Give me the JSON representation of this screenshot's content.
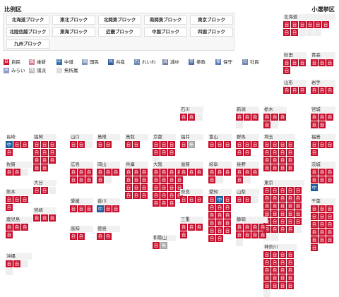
{
  "header": {
    "left": "比例区",
    "right": "小選挙区"
  },
  "blocks": [
    "北海道ブロック",
    "東北ブロック",
    "北関東ブロック",
    "南関東ブロック",
    "東京ブロック",
    "北陸信越ブロック",
    "東海ブロック",
    "近畿ブロック",
    "中国ブロック",
    "四国ブロック",
    "九州ブロック"
  ],
  "legend": [
    {
      "glyph": "自",
      "label": "自民",
      "color": "#c8102e"
    },
    {
      "glyph": "維",
      "label": "維新",
      "color": "#d97b8b"
    },
    {
      "glyph": "中",
      "label": "中道",
      "color": "#2e6aa8"
    },
    {
      "glyph": "国",
      "label": "国民",
      "color": "#7d95bb"
    },
    {
      "glyph": "共",
      "label": "共産",
      "color": "#2f5aa0"
    },
    {
      "glyph": "れ",
      "label": "れいわ",
      "color": "#6c86b2"
    },
    {
      "glyph": "減",
      "label": "減ゆ",
      "color": "#6f82a6"
    },
    {
      "glyph": "参",
      "label": "参政",
      "color": "#4f6da0"
    },
    {
      "glyph": "保",
      "label": "保守",
      "color": "#5b7db5"
    },
    {
      "glyph": "社",
      "label": "社民",
      "color": "#6f85ab"
    },
    {
      "glyph": "み",
      "label": "みらい",
      "color": "#8e97c6"
    },
    {
      "glyph": "諸",
      "label": "諸派",
      "color": "#bbbbbb"
    },
    {
      "glyph": "",
      "label": "無所属",
      "color": "#dddddd"
    }
  ],
  "prefectures": [
    {
      "name": "北海道",
      "seats": "jjjjjjjjeee"
    },
    {
      "name": "秋田",
      "seats": "jjjj"
    },
    {
      "name": "青森",
      "seats": "jjj"
    },
    {
      "name": "山形",
      "seats": "jjj"
    },
    {
      "name": "岩手",
      "seats": "jjj"
    },
    {
      "name": "宮城",
      "seats": "jjjjj"
    },
    {
      "name": "石川",
      "seats": "jje"
    },
    {
      "name": "新潟",
      "seats": "jjje"
    },
    {
      "name": "栃木",
      "seats": "jjjje"
    },
    {
      "name": "福島",
      "seats": "jjjj"
    },
    {
      "name": "長崎",
      "seats": "kjjj"
    },
    {
      "name": "福岡",
      "seats": "jjjjjjjjjjj"
    },
    {
      "name": "山口",
      "seats": "jje"
    },
    {
      "name": "島根",
      "seats": "jj"
    },
    {
      "name": "鳥取",
      "seats": "jj"
    },
    {
      "name": "京都",
      "seats": "jjjjjje"
    },
    {
      "name": "福井",
      "seats": "js"
    },
    {
      "name": "富山",
      "seats": "jjj"
    },
    {
      "name": "群馬",
      "seats": "jjjjj"
    },
    {
      "name": "埼玉",
      "seats": "jjjjjjjjjjjjjjjj"
    },
    {
      "name": "佐賀",
      "seats": "jje"
    },
    {
      "name": "広島",
      "seats": "jjjjjj"
    },
    {
      "name": "岡山",
      "seats": "jjjje"
    },
    {
      "name": "兵庫",
      "seats": "jjjjjjjjjjjj"
    },
    {
      "name": "大阪",
      "seats": "jjjjjjjjjjjjjjjjjjj"
    },
    {
      "name": "滋賀",
      "seats": "jjj"
    },
    {
      "name": "岐阜",
      "seats": "jjjje"
    },
    {
      "name": "長野",
      "seats": "jjjje"
    },
    {
      "name": "茨城",
      "seats": "jjjjjjk"
    },
    {
      "name": "大分",
      "seats": "jje"
    },
    {
      "name": "熊本",
      "seats": "jjjj"
    },
    {
      "name": "奈良",
      "seats": "jjj"
    },
    {
      "name": "愛知",
      "seats": "jkjjjjjjjjjjjjjjj"
    },
    {
      "name": "山梨",
      "seats": "jje"
    },
    {
      "name": "東京",
      "seats": "jjjjjjjjjjjjjjjjjjjjjjjjjjjjjeee"
    },
    {
      "name": "千葉",
      "seats": "jjjjjjjjjjjjjjjj"
    },
    {
      "name": "宮崎",
      "seats": "jjj"
    },
    {
      "name": "愛媛",
      "seats": "jjj"
    },
    {
      "name": "香川",
      "seats": "kjj"
    },
    {
      "name": "鹿児島",
      "seats": "jjjj"
    },
    {
      "name": "三重",
      "seats": "jjjj"
    },
    {
      "name": "高知",
      "seats": "jj"
    },
    {
      "name": "徳島",
      "seats": "jj"
    },
    {
      "name": "静岡",
      "seats": "jjjjjjjje"
    },
    {
      "name": "和歌山",
      "seats": "js"
    },
    {
      "name": "神奈川",
      "seats": "jjjjjjjjjjjjjjjjjjjje"
    },
    {
      "name": "沖縄",
      "seats": "jjee"
    }
  ],
  "party_glyphs": {
    "j": "自",
    "k": "中",
    "s": "無",
    "e": "",
    "m": ""
  }
}
